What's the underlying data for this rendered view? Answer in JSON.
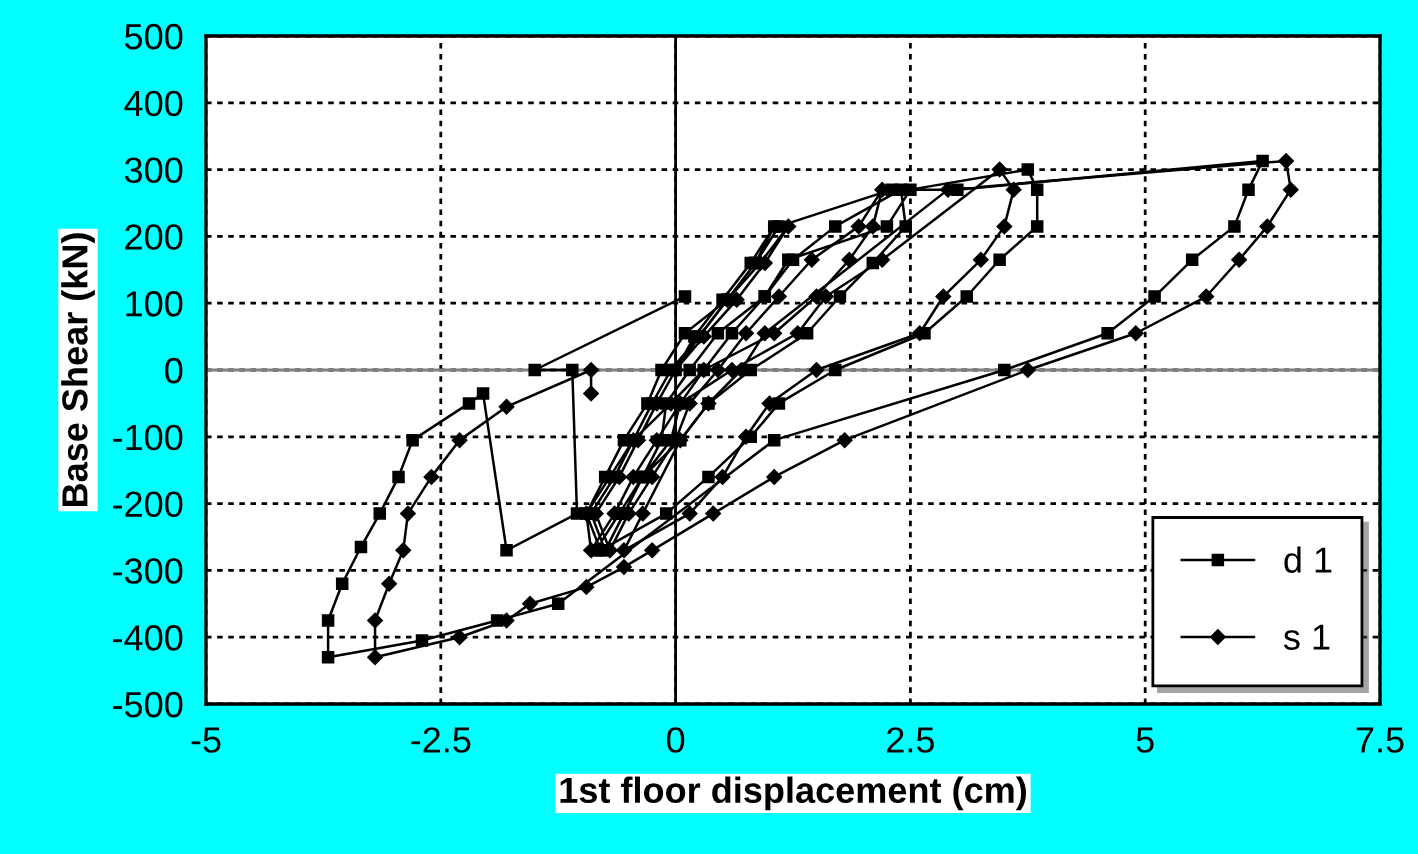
{
  "chart_data": {
    "type": "line",
    "xlabel": "1st floor displacement (cm)",
    "ylabel": "Base Shear (kN)",
    "xlim": [
      -5,
      7.5
    ],
    "xticks": [
      -5,
      -2.5,
      0,
      2.5,
      5,
      7.5
    ],
    "ylim": [
      -500,
      500
    ],
    "yticks": [
      -500,
      -400,
      -300,
      -200,
      -100,
      0,
      100,
      200,
      300,
      400,
      500
    ],
    "grid": true,
    "legend": "bottom right",
    "line_style": "solid",
    "ref_lines": [
      {
        "axis": "y",
        "value": 0,
        "color": "#808080"
      },
      {
        "axis": "x",
        "value": 0,
        "color": "#000000"
      }
    ],
    "series": [
      {
        "name": "d 1",
        "color": "#000000",
        "marker": "square",
        "x": [
          0,
          0.2,
          0.5,
          0.8,
          1.05,
          0.85,
          0.55,
          0.25,
          -0.05,
          -0.25,
          -0.45,
          -0.65,
          -0.9,
          -0.75,
          -0.55,
          -0.35,
          -0.05,
          0.05,
          0.3,
          0.6,
          0.95,
          1.25,
          1.7,
          2.4,
          2.45,
          2.1,
          1.75,
          1.4,
          0.8,
          0.35,
          0.05,
          -0.35,
          -0.6,
          -0.85,
          -0.6,
          -0.35,
          -0.15,
          -0.1,
          0.15,
          0.45,
          0.95,
          1.2,
          2.25,
          2.5,
          3.75,
          3.85,
          3.85,
          3.45,
          3.1,
          2.65,
          1.7,
          1.1,
          0.8,
          0.35,
          -0.1,
          -0.8,
          -0.95,
          -0.75,
          -0.55,
          -0.3,
          -0.15,
          0.1,
          0.55,
          0.85,
          1.1,
          2.3,
          3.0,
          6.25,
          6.1,
          5.95,
          5.5,
          5.1,
          4.6,
          3.5,
          1.05,
          -1.25,
          -1.9,
          -2.7,
          -3.7,
          -3.7,
          -3.55,
          -3.35,
          -3.15,
          -2.95,
          -2.8,
          -2.2,
          -2.05,
          -1.8,
          -1.05,
          -1.1,
          -1.5,
          0.1
        ],
        "values": [
          0,
          50,
          105,
          160,
          215,
          160,
          105,
          50,
          0,
          -50,
          -105,
          -160,
          -215,
          -270,
          -215,
          -160,
          -105,
          -50,
          0,
          55,
          110,
          165,
          215,
          270,
          215,
          160,
          110,
          55,
          0,
          -50,
          -105,
          -160,
          -215,
          -270,
          -215,
          -160,
          -105,
          -50,
          0,
          55,
          110,
          165,
          215,
          270,
          300,
          270,
          215,
          165,
          110,
          55,
          0,
          -50,
          -100,
          -160,
          -215,
          -270,
          -215,
          -160,
          -105,
          -50,
          0,
          55,
          105,
          160,
          215,
          270,
          270,
          313,
          270,
          215,
          165,
          110,
          55,
          0,
          -105,
          -350,
          -375,
          -405,
          -430,
          -375,
          -320,
          -265,
          -215,
          -160,
          -105,
          -50,
          -35,
          -270,
          -215,
          0,
          0,
          110
        ]
      },
      {
        "name": "s 1",
        "color": "#000000",
        "marker": "diamond",
        "x": [
          0,
          0.25,
          0.55,
          0.9,
          1.2,
          0.95,
          0.65,
          0.3,
          0,
          -0.2,
          -0.4,
          -0.6,
          -0.85,
          -0.7,
          -0.5,
          -0.25,
          0,
          0.15,
          0.45,
          0.75,
          1.1,
          1.45,
          1.95,
          2.2,
          2.1,
          1.85,
          1.5,
          1.05,
          0.3,
          -0.05,
          -0.45,
          -0.7,
          -0.95,
          -0.9,
          -0.65,
          -0.45,
          -0.2,
          0.05,
          0.6,
          1.3,
          1.6,
          2.2,
          3.45,
          3.6,
          3.5,
          3.25,
          2.85,
          2.6,
          1.5,
          1.0,
          0.75,
          0.5,
          0.15,
          -0.55,
          -0.35,
          0.05,
          0.35,
          0.7,
          0.95,
          2.9,
          6.5,
          6.55,
          6.3,
          6.0,
          5.65,
          4.9,
          3.75,
          1.8,
          1.05,
          0.4,
          -0.25,
          -0.55,
          -0.95,
          -1.55,
          -1.8,
          -2.3,
          -3.2,
          -3.2,
          -3.05,
          -2.9,
          -2.85,
          -2.6,
          -2.3,
          -1.8,
          -0.9,
          -0.9
        ],
        "values": [
          0,
          50,
          105,
          160,
          215,
          160,
          105,
          50,
          0,
          -50,
          -105,
          -160,
          -215,
          -270,
          -215,
          -160,
          -105,
          -50,
          0,
          55,
          110,
          165,
          215,
          270,
          215,
          165,
          110,
          55,
          0,
          -50,
          -105,
          -160,
          -215,
          -270,
          -215,
          -160,
          -105,
          -50,
          0,
          55,
          110,
          165,
          300,
          270,
          215,
          165,
          110,
          55,
          0,
          -50,
          -100,
          -160,
          -215,
          -270,
          -215,
          -105,
          -50,
          0,
          55,
          270,
          313,
          270,
          215,
          165,
          110,
          55,
          0,
          -105,
          -160,
          -215,
          -270,
          -295,
          -325,
          -350,
          -375,
          -400,
          -430,
          -375,
          -320,
          -270,
          -215,
          -160,
          -105,
          -55,
          0,
          -35
        ]
      }
    ]
  }
}
